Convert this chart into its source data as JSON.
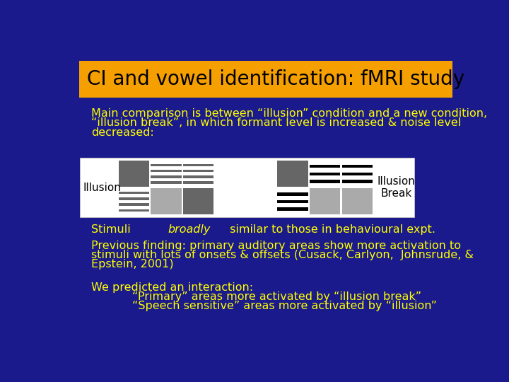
{
  "background_color": "#1a1a8c",
  "title_bg_color": "#f5a000",
  "title_text": "CI and vowel identification: fMRI study",
  "title_color": "#000000",
  "title_fontsize": 20,
  "body_text_color": "#ffff00",
  "body_fontsize": 11.5,
  "line1": "Main comparison is between “illusion” condition and a new condition,",
  "line2": "“illusion break”, in which formant level is increased & noise level",
  "line3": "decreased:",
  "stimuli_line": [
    "Stimuli ",
    "broadly",
    " similar to those in behavioural expt."
  ],
  "prev_line1": "Previous finding: primary auditory areas show more activation to",
  "prev_line2": "stimuli with lots of onsets & offsets (Cusack, Carlyon,  Johnsrude, &",
  "prev_line3": "Epstein, 2001)",
  "pred_line1": "We predicted an interaction:",
  "pred_line2": "“Primary” areas more activated by “illusion break”",
  "pred_line3": "“Speech sensitive” areas more activated by “illusion”",
  "illusion_label": "Illusion",
  "break_label": "Illusion\nBreak",
  "dark_gray": "#666666",
  "light_gray": "#aaaaaa",
  "panel_white": "#ffffff",
  "black": "#000000"
}
